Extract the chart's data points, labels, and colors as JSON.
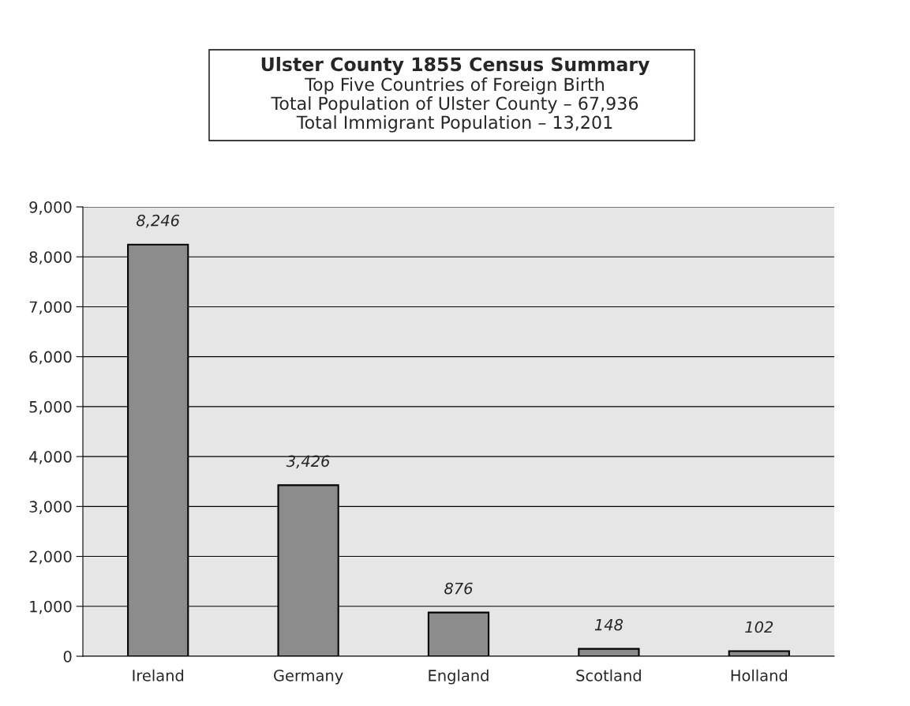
{
  "chart_data": {
    "type": "bar",
    "title": "Ulster County 1855 Census Summary",
    "subtitle": "Top Five Countries of Foreign Birth\nTotal Population of Ulster County – 67,936\nTotal Immigrant Population – 13,201",
    "categories": [
      "Ireland",
      "Germany",
      "England",
      "Scotland",
      "Holland"
    ],
    "values": [
      8246,
      3426,
      876,
      148,
      102
    ],
    "value_labels": [
      "8,246",
      "3,426",
      "876",
      "148",
      "102"
    ],
    "color": "#8c8c8c",
    "ylim": [
      0,
      9000
    ],
    "yticks": [
      {
        "value": 0,
        "label": "0"
      },
      {
        "value": 1000,
        "label": "1,000"
      },
      {
        "value": 2000,
        "label": "2,000"
      },
      {
        "value": 3000,
        "label": "3,000"
      },
      {
        "value": 4000,
        "label": "4,000"
      },
      {
        "value": 5000,
        "label": "5,000"
      },
      {
        "value": 6000,
        "label": "6,000"
      },
      {
        "value": 7000,
        "label": "7,000"
      },
      {
        "value": 8000,
        "label": "8,000"
      },
      {
        "value": 9000,
        "label": "9,000"
      }
    ],
    "grid": "y",
    "legend": false
  }
}
